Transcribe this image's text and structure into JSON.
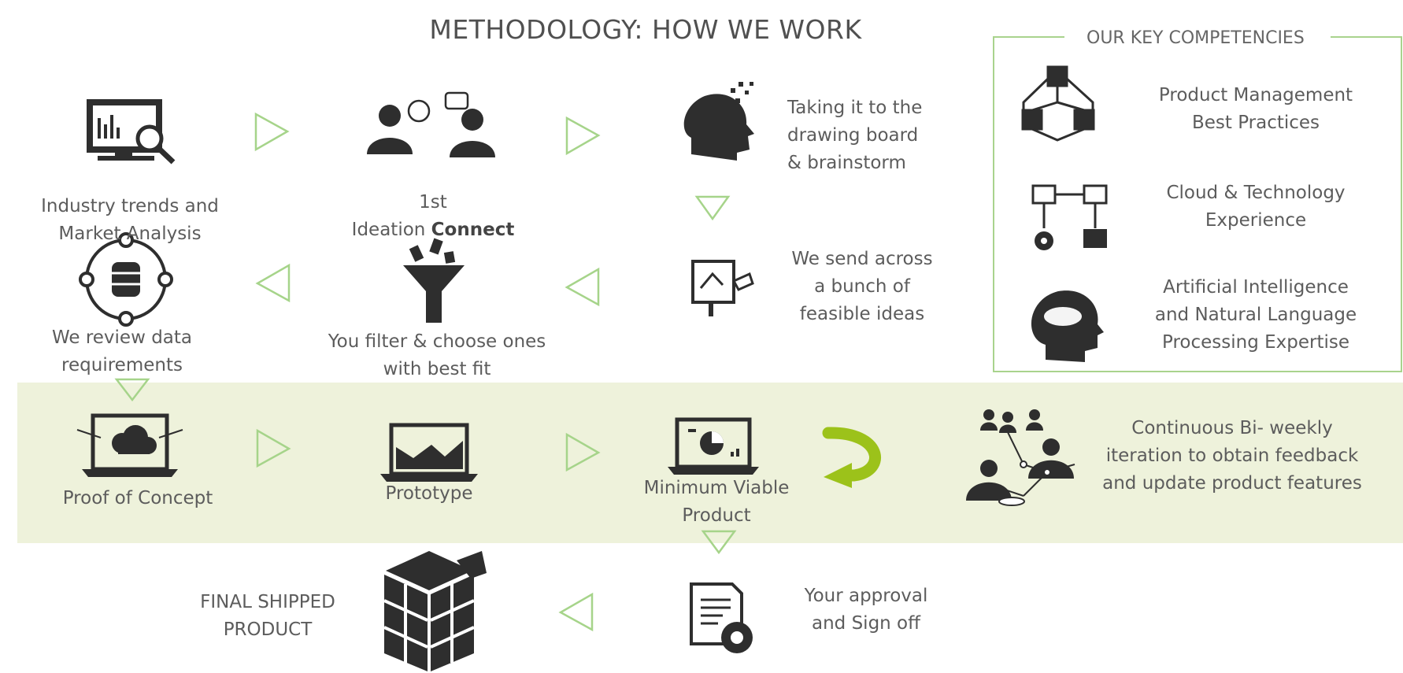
{
  "title": "METHODOLOGY: HOW WE WORK",
  "colors": {
    "arrow": "#a6d48a",
    "band": "#eef2db",
    "icon": "#2e2e2e",
    "curve_arrow": "#9cc21a",
    "box_border": "#a9d38d"
  },
  "steps": {
    "industry": {
      "icon": "monitor-analysis-icon",
      "line1": "Industry trends and",
      "line2": "Market Analysis"
    },
    "ideation": {
      "icon": "two-people-chat-icon",
      "line1": "1st",
      "line2_prefix": "Ideation ",
      "line2_bold": "Connect"
    },
    "brainstorm": {
      "icon": "head-brainstorm-icon",
      "text": "Taking it to the\ndrawing   board\n& brainstorm"
    },
    "ideas": {
      "icon": "presentation-board-icon",
      "text": "We send across\na bunch of\nfeasible ideas"
    },
    "filter": {
      "icon": "funnel-icon",
      "text": "You filter & choose ones\nwith best fit"
    },
    "data_review": {
      "icon": "database-network-icon",
      "text": "We review data\nrequirements"
    },
    "poc": {
      "icon": "laptop-cloud-icon",
      "text": "Proof of Concept"
    },
    "prototype": {
      "icon": "laptop-chart-icon",
      "text": "Prototype"
    },
    "mvp": {
      "icon": "laptop-pie-icon",
      "text": "Minimum Viable\nProduct"
    },
    "iteration": {
      "icon": "people-network-icon",
      "text": "Continuous Bi- weekly\niteration to obtain feedback\nand update product features"
    },
    "approval": {
      "icon": "document-gear-icon",
      "text": "Your approval\nand Sign off"
    },
    "final": {
      "icon": "cube-box-icon",
      "text": "FINAL SHIPPED\nPRODUCT"
    }
  },
  "competencies": {
    "title": "OUR KEY COMPETENCIES",
    "items": [
      {
        "icon": "cubes-network-icon",
        "text": "Product Management\nBest Practices"
      },
      {
        "icon": "cloud-tech-icon",
        "text": "Cloud & Technology\nExperience"
      },
      {
        "icon": "ai-head-icon",
        "text": "Artificial Intelligence\nand Natural Language\nProcessing Expertise"
      }
    ]
  }
}
